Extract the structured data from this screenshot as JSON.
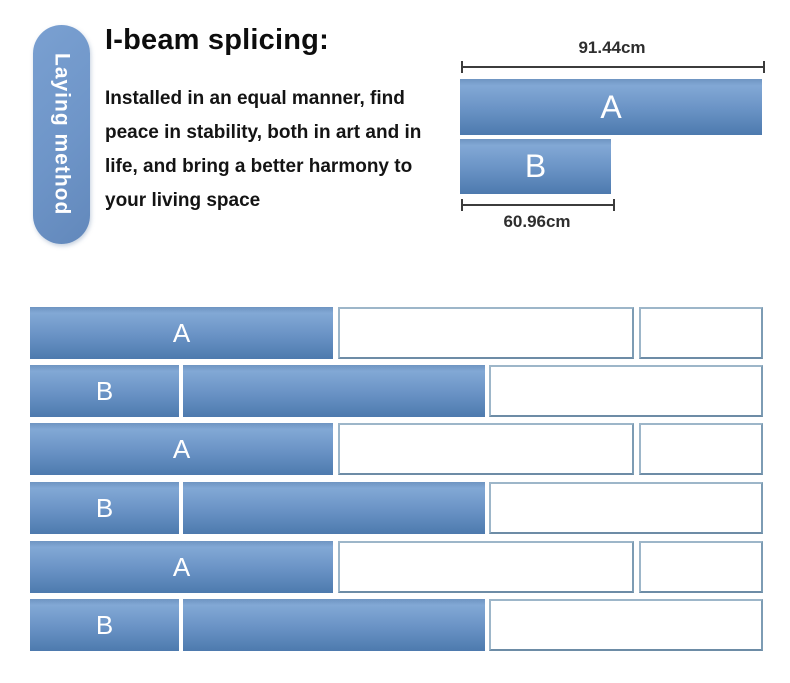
{
  "colors": {
    "plank_blue_light": "#82a8d5",
    "plank_blue_dark": "#4d7aae",
    "pill_blue": "#6e95c8",
    "white_plank_outline": "#87a3ba",
    "dimension_line": "#3c3c3c",
    "text": "#0d0d0d"
  },
  "pill": {
    "label": "Laying method"
  },
  "header": {
    "title": "I-beam splicing:",
    "description_lines": [
      "Installed in an equal manner, find",
      "peace in stability, both in art and in",
      "life, and bring a better harmony to",
      "your living space"
    ]
  },
  "size_diagram": {
    "plank_a": {
      "label": "A",
      "dimension": "91.44cm"
    },
    "plank_b": {
      "label": "B",
      "dimension": "60.96cm"
    }
  },
  "layout_diagram": {
    "rows": [
      {
        "label": "A"
      },
      {
        "label": "B"
      },
      {
        "label": "A"
      },
      {
        "label": "B"
      },
      {
        "label": "A"
      },
      {
        "label": "B"
      }
    ]
  }
}
